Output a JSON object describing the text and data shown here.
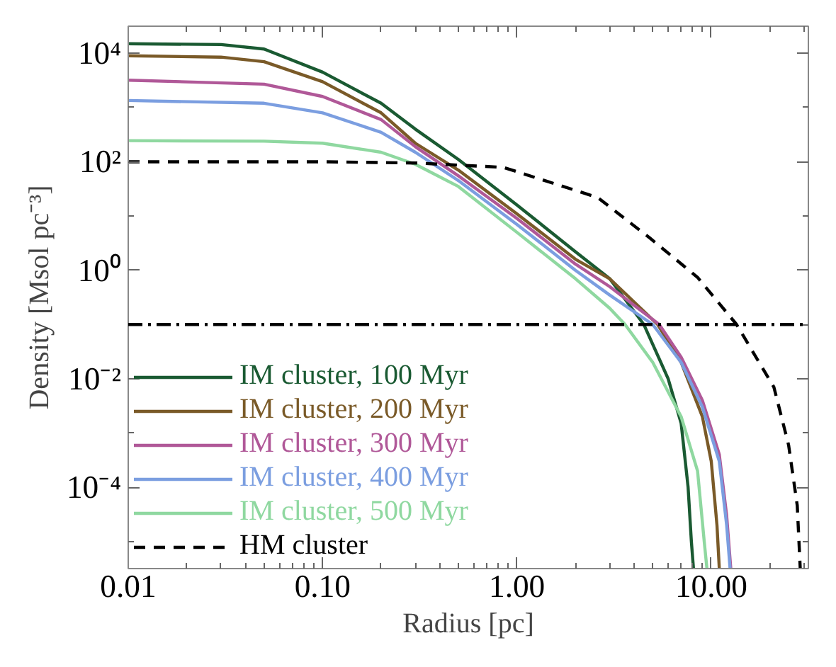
{
  "chart_data": {
    "type": "line",
    "xlabel": "Radius [pc]",
    "ylabel": "Density [Msol pc⁻³]",
    "log": "xy",
    "grid": false,
    "legend": "bottom left",
    "line_style": "solid",
    "marker": "none",
    "xlim": [
      0.01,
      31.6
    ],
    "ylim": [
      3.16e-06,
      31600
    ],
    "xticks": [
      {
        "value": 0.01,
        "label": "0.01"
      },
      {
        "value": 0.02,
        "label": null
      },
      {
        "value": 0.03,
        "label": null
      },
      {
        "value": 0.04,
        "label": null
      },
      {
        "value": 0.05,
        "label": null
      },
      {
        "value": 0.06,
        "label": null
      },
      {
        "value": 0.07,
        "label": null
      },
      {
        "value": 0.08,
        "label": null
      },
      {
        "value": 0.09,
        "label": null
      },
      {
        "value": 0.1,
        "label": "0.10"
      },
      {
        "value": 0.2,
        "label": null
      },
      {
        "value": 0.3,
        "label": null
      },
      {
        "value": 0.4,
        "label": null
      },
      {
        "value": 0.5,
        "label": null
      },
      {
        "value": 0.6,
        "label": null
      },
      {
        "value": 0.7,
        "label": null
      },
      {
        "value": 0.8,
        "label": null
      },
      {
        "value": 0.9,
        "label": null
      },
      {
        "value": 1,
        "label": "1.00"
      },
      {
        "value": 2,
        "label": null
      },
      {
        "value": 3,
        "label": null
      },
      {
        "value": 4,
        "label": null
      },
      {
        "value": 5,
        "label": null
      },
      {
        "value": 6,
        "label": null
      },
      {
        "value": 7,
        "label": null
      },
      {
        "value": 8,
        "label": null
      },
      {
        "value": 9,
        "label": null
      },
      {
        "value": 10,
        "label": "10.00"
      },
      {
        "value": 20,
        "label": null
      },
      {
        "value": 30,
        "label": null
      }
    ],
    "yticks": [
      {
        "value": 1e-05,
        "label": null
      },
      {
        "value": 0.0001,
        "label": "10⁻⁴"
      },
      {
        "value": 0.001,
        "label": null
      },
      {
        "value": 0.01,
        "label": "10⁻²"
      },
      {
        "value": 0.1,
        "label": null
      },
      {
        "value": 1,
        "label": "10⁰"
      },
      {
        "value": 10,
        "label": null
      },
      {
        "value": 100,
        "label": "10²"
      },
      {
        "value": 1000,
        "label": null
      },
      {
        "value": 10000,
        "label": "10⁴"
      }
    ],
    "ref_lines": [
      {
        "axis": "y",
        "value": 0.1,
        "label": null,
        "color": "#000000",
        "line_style": "dashdot"
      }
    ],
    "series": [
      {
        "name": "IM cluster, 100 Myr",
        "color": "#1a5a32",
        "x": [
          0.01,
          0.03,
          0.05,
          0.1,
          0.2,
          0.3,
          0.5,
          1,
          2,
          3,
          4.5,
          6,
          7,
          7.6,
          7.9,
          8.1
        ],
        "values": [
          15000,
          14500,
          12000,
          4500,
          1200,
          400,
          110,
          16,
          2.2,
          0.7,
          0.1,
          0.01,
          0.0015,
          0.0001,
          1e-05,
          3.16e-06
        ]
      },
      {
        "name": "IM cluster, 200 Myr",
        "color": "#7a5a28",
        "x": [
          0.01,
          0.03,
          0.05,
          0.1,
          0.2,
          0.3,
          0.5,
          1,
          2,
          3,
          5.3,
          7,
          9,
          10,
          10.7,
          11
        ],
        "values": [
          9000,
          8500,
          7000,
          3000,
          800,
          220,
          70,
          11,
          1.6,
          0.7,
          0.1,
          0.02,
          0.002,
          0.0003,
          2e-05,
          3.16e-06
        ]
      },
      {
        "name": "IM cluster, 300 Myr",
        "color": "#b05898",
        "x": [
          0.01,
          0.05,
          0.1,
          0.2,
          0.3,
          0.5,
          1,
          2,
          3,
          5.4,
          7,
          9,
          11,
          12,
          12.6
        ],
        "values": [
          3200,
          2700,
          1600,
          600,
          190,
          55,
          9,
          1.3,
          0.5,
          0.1,
          0.025,
          0.004,
          0.0004,
          3e-05,
          3.16e-06
        ]
      },
      {
        "name": "IM cluster, 400 Myr",
        "color": "#7b9ee0",
        "x": [
          0.01,
          0.05,
          0.1,
          0.2,
          0.3,
          0.5,
          1,
          2,
          3,
          5,
          7,
          9,
          11,
          12,
          12.5
        ],
        "values": [
          1350,
          1200,
          800,
          350,
          150,
          45,
          7,
          1.0,
          0.35,
          0.1,
          0.02,
          0.003,
          0.0003,
          2e-05,
          3.16e-06
        ]
      },
      {
        "name": "IM cluster, 500 Myr",
        "color": "#8fd8a0",
        "x": [
          0.01,
          0.05,
          0.1,
          0.2,
          0.3,
          0.5,
          1,
          2,
          3,
          3.6,
          5,
          7,
          8.5,
          9.2,
          9.5
        ],
        "values": [
          245,
          240,
          220,
          150,
          90,
          35,
          5,
          0.7,
          0.2,
          0.1,
          0.02,
          0.002,
          0.0002,
          1e-05,
          3.16e-06
        ]
      },
      {
        "name": "HM cluster",
        "color": "#000000",
        "line_style": "dashed",
        "x": [
          0.01,
          0.1,
          0.3,
          0.85,
          2.6,
          4.8,
          8.5,
          13.5,
          21,
          25,
          27.7,
          28.7
        ],
        "values": [
          100,
          100,
          95,
          79,
          22,
          4,
          0.74,
          0.1,
          0.007,
          0.0006,
          4.6e-05,
          3.16e-06
        ]
      }
    ]
  }
}
